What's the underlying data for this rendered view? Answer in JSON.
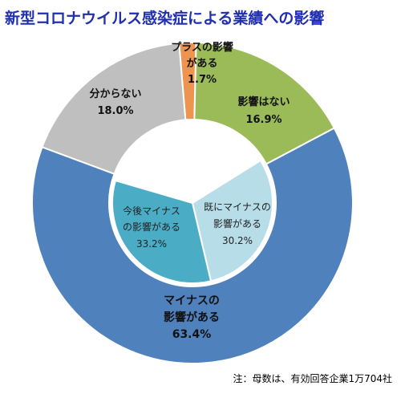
{
  "title": "新型コロナウイルス感染症による業績への影響",
  "footnote": "注：母数は、有効回答企業1万704社",
  "chart_data": {
    "type": "pie",
    "outer": [
      {
        "label": "プラスの影響がある",
        "value": 1.7,
        "display": "1.7%",
        "color": "#ed9450"
      },
      {
        "label": "影響はない",
        "value": 16.9,
        "display": "16.9%",
        "color": "#9bbb59"
      },
      {
        "label": "マイナスの影響がある",
        "value": 63.4,
        "display": "63.4%",
        "color": "#4f81bd"
      },
      {
        "label": "分からない",
        "value": 18.0,
        "display": "18.0%",
        "color": "#bfbfbf"
      }
    ],
    "inner": [
      {
        "label": "既にマイナスの影響がある",
        "value": 30.2,
        "display": "30.2%",
        "color": "#b7dde8"
      },
      {
        "label": "今後マイナスの影響がある",
        "value": 33.2,
        "display": "33.2%",
        "color": "#4bacc6"
      }
    ]
  }
}
